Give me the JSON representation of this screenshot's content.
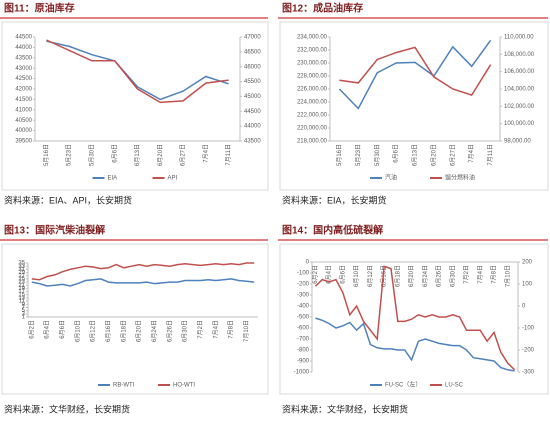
{
  "chart_data": [
    {
      "type": "line",
      "figure_title": "图11：原油库存",
      "source": "资料来源：EIA、API，长安期货",
      "categories": [
        "5月16日",
        "5月23日",
        "5月30日",
        "6月6日",
        "6月13日",
        "6月20日",
        "6月27日",
        "7月4日",
        "7月11日"
      ],
      "series": [
        {
          "name": "EIA",
          "color": "#4f81bd",
          "axis": "y",
          "values": [
            44300,
            44050,
            43650,
            43350,
            42100,
            41500,
            41900,
            42600,
            42250
          ]
        },
        {
          "name": "API",
          "color": "#c0504d",
          "axis": "y2",
          "values": [
            46900,
            46550,
            46200,
            46200,
            45250,
            44800,
            44850,
            45450,
            45550
          ]
        }
      ],
      "ylim": [
        39500,
        44500
      ],
      "yticks": [
        39500,
        40000,
        40500,
        41000,
        41500,
        42000,
        42500,
        43000,
        43500,
        44000,
        44500
      ],
      "y2lim": [
        43500,
        47000
      ],
      "y2ticks": [
        43500,
        44000,
        44500,
        45000,
        45500,
        46000,
        46500,
        47000
      ],
      "xaxis": "bottom"
    },
    {
      "type": "line",
      "figure_title": "图12：成品油库存",
      "source": "资料来源：EIA，长安期货",
      "categories": [
        "5月16日",
        "5月23日",
        "5月30日",
        "6月6日",
        "6月13日",
        "6月20日",
        "6月27日",
        "7月4日",
        "7月11日"
      ],
      "series": [
        {
          "name": "汽油",
          "color": "#4f81bd",
          "axis": "y",
          "values": [
            226000,
            223000,
            228500,
            230000,
            230100,
            228000,
            232500,
            229500,
            233500
          ]
        },
        {
          "name": "馏分燃料油",
          "color": "#c0504d",
          "axis": "y2",
          "values": [
            105000,
            104700,
            107400,
            108200,
            108800,
            105400,
            104000,
            103300,
            106800
          ]
        }
      ],
      "ylim": [
        218000,
        234000
      ],
      "yticks": [
        {
          "value": 218000,
          "label": "218,000.00"
        },
        {
          "value": 220000,
          "label": "220,000.00"
        },
        {
          "value": 222000,
          "label": "222,000.00"
        },
        {
          "value": 224000,
          "label": "224,000.00"
        },
        {
          "value": 226000,
          "label": "226,000.00"
        },
        {
          "value": 228000,
          "label": "228,000.00"
        },
        {
          "value": 230000,
          "label": "230,000.00"
        },
        {
          "value": 232000,
          "label": "232,000.00"
        },
        {
          "value": 234000,
          "label": "234,000.00"
        }
      ],
      "y2lim": [
        98000,
        110000
      ],
      "y2ticks": [
        {
          "value": 98000,
          "label": "98,000.00"
        },
        {
          "value": 100000,
          "label": "100,000.00"
        },
        {
          "value": 102000,
          "label": "102,000.00"
        },
        {
          "value": 104000,
          "label": "104,000.00"
        },
        {
          "value": 106000,
          "label": "106,000.00"
        },
        {
          "value": 108000,
          "label": "108,000.00"
        },
        {
          "value": 110000,
          "label": "110,000.00"
        }
      ],
      "xaxis": "bottom"
    },
    {
      "type": "line",
      "figure_title": "图13：国际汽柴油裂解",
      "source": "资料来源：文华财经，长安期货",
      "categories": [
        "6月2日",
        null,
        "6月4日",
        null,
        "6月6日",
        null,
        "6月10日",
        null,
        "6月12日",
        null,
        "6月16日",
        null,
        "6月18日",
        null,
        "6月20日",
        null,
        "6月24日",
        null,
        "6月26日",
        null,
        "6月30日",
        null,
        "7月2日",
        null,
        "7月4日",
        null,
        "7月8日",
        null,
        "7月10日",
        null
      ],
      "series": [
        {
          "name": "RB-WTI",
          "color": "#4f81bd",
          "axis": "y",
          "values": [
            23,
            22,
            20.5,
            21,
            21.5,
            20.5,
            22,
            24,
            24.5,
            25,
            23,
            22.5,
            22.5,
            22.5,
            22.5,
            23,
            22,
            22.5,
            23,
            23,
            24,
            24,
            24,
            24.5,
            24,
            24.5,
            25,
            24,
            23.5,
            23
          ]
        },
        {
          "name": "HO-WTI",
          "color": "#c0504d",
          "axis": "y",
          "values": [
            25,
            24.5,
            26.5,
            27.5,
            29.5,
            31,
            32,
            33,
            32.5,
            31.5,
            32,
            34,
            32,
            33,
            34,
            33,
            34,
            33.5,
            33,
            34,
            34.5,
            34,
            33.5,
            34,
            34.5,
            34,
            34.5,
            34,
            35,
            35
          ]
        }
      ],
      "ylim": [
        1,
        35
      ],
      "yticks": [
        1,
        3,
        5,
        7,
        9,
        11,
        13,
        15,
        17,
        19,
        21,
        23,
        25,
        27,
        29,
        31,
        33,
        35
      ],
      "xaxis": "bottom"
    },
    {
      "type": "line",
      "figure_title": "图14：国内高低硫裂解",
      "source": "资料来源：文华财经，长安期货",
      "categories": [
        "6月2日",
        null,
        "6月4日",
        null,
        "6月6日",
        null,
        "6月10日",
        null,
        "6月12日",
        null,
        "6月16日",
        null,
        "6月18日",
        null,
        "6月20日",
        null,
        "6月24日",
        null,
        "6月26日",
        null,
        "6月30日",
        null,
        "7月2日",
        null,
        "7月4日",
        null,
        "7月8日",
        null,
        "7月10日",
        null
      ],
      "series": [
        {
          "name": "FU-SC（左）",
          "color": "#4f81bd",
          "axis": "y",
          "values": [
            -510,
            -530,
            -560,
            -600,
            -580,
            -550,
            -620,
            -560,
            -750,
            -780,
            -790,
            -790,
            -800,
            -800,
            -890,
            -720,
            -700,
            -720,
            -740,
            -750,
            -760,
            -760,
            -800,
            -870,
            -880,
            -890,
            -900,
            -960,
            -980,
            -990
          ]
        },
        {
          "name": "LU-SC",
          "color": "#c0504d",
          "axis": "y2",
          "values": [
            90,
            120,
            110,
            120,
            60,
            -40,
            0,
            -70,
            -110,
            -150,
            180,
            170,
            -70,
            -70,
            -60,
            -40,
            -50,
            -40,
            -50,
            -50,
            -40,
            -50,
            -110,
            -110,
            -110,
            -160,
            -120,
            -210,
            -260,
            -290
          ]
        }
      ],
      "ylim": [
        -1000,
        0
      ],
      "yticks": [
        -1000,
        -900,
        -800,
        -700,
        -600,
        -500,
        -400,
        -300,
        -200,
        -100,
        0
      ],
      "y2lim": [
        -300,
        200
      ],
      "y2ticks": [
        -300,
        -200,
        -100,
        0,
        100,
        200
      ],
      "xaxis": "top"
    }
  ]
}
